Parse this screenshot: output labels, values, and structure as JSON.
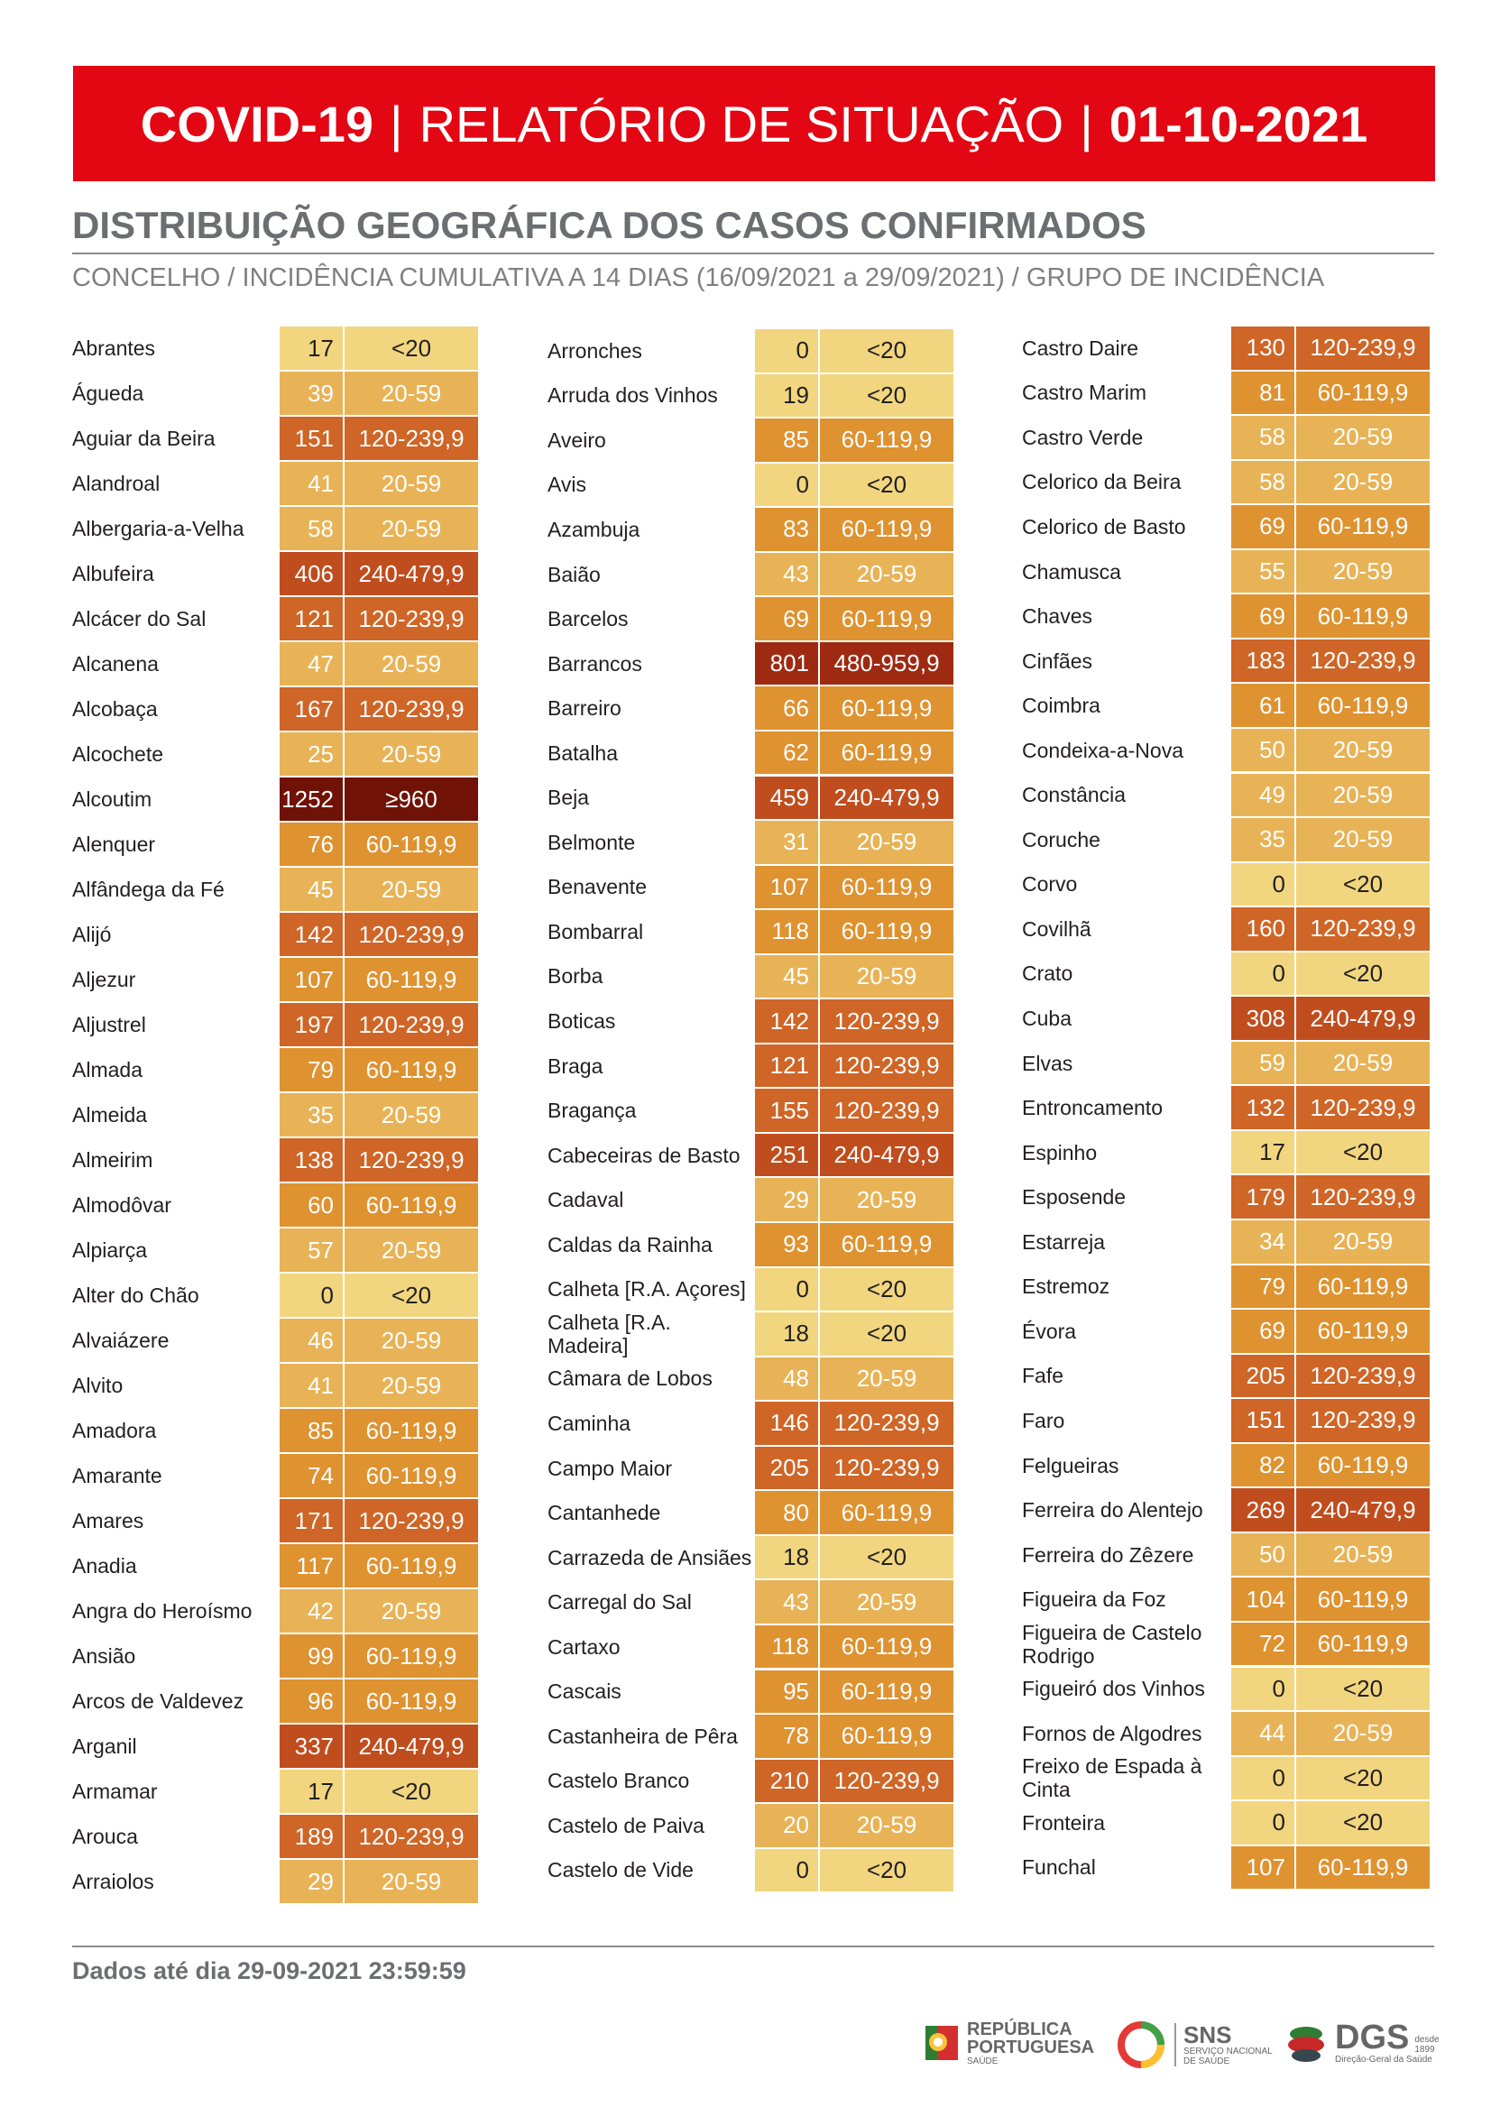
{
  "header": {
    "prefix": "COVID-19",
    "separator": "|",
    "title": "RELATÓRIO DE SITUAÇÃO",
    "date": "01-10-2021"
  },
  "section_title": "DISTRIBUIÇÃO GEOGRÁFICA DOS CASOS CONFIRMADOS",
  "subtitle": "CONCELHO / INCIDÊNCIA CUMULATIVA A 14 DIAS (16/09/2021 a 29/09/2021) / GRUPO DE INCIDÊNCIA",
  "group_colors": {
    "<20": "#f1d67f",
    "20-59": "#e8b356",
    "60-119,9": "#de9230",
    "120-239,9": "#cf6526",
    "240-479,9": "#c04d1e",
    "480-959,9": "#9e2a12",
    "≥960": "#701206"
  },
  "columns": [
    [
      {
        "name": "Abrantes",
        "value": "17",
        "group": "<20"
      },
      {
        "name": "Águeda",
        "value": "39",
        "group": "20-59"
      },
      {
        "name": "Aguiar da Beira",
        "value": "151",
        "group": "120-239,9"
      },
      {
        "name": "Alandroal",
        "value": "41",
        "group": "20-59"
      },
      {
        "name": "Albergaria-a-Velha",
        "value": "58",
        "group": "20-59"
      },
      {
        "name": "Albufeira",
        "value": "406",
        "group": "240-479,9"
      },
      {
        "name": "Alcácer do Sal",
        "value": "121",
        "group": "120-239,9"
      },
      {
        "name": "Alcanena",
        "value": "47",
        "group": "20-59"
      },
      {
        "name": "Alcobaça",
        "value": "167",
        "group": "120-239,9"
      },
      {
        "name": "Alcochete",
        "value": "25",
        "group": "20-59"
      },
      {
        "name": "Alcoutim",
        "value": "1252",
        "group": "≥960"
      },
      {
        "name": "Alenquer",
        "value": "76",
        "group": "60-119,9"
      },
      {
        "name": "Alfândega da Fé",
        "value": "45",
        "group": "20-59"
      },
      {
        "name": "Alijó",
        "value": "142",
        "group": "120-239,9"
      },
      {
        "name": "Aljezur",
        "value": "107",
        "group": "60-119,9"
      },
      {
        "name": "Aljustrel",
        "value": "197",
        "group": "120-239,9"
      },
      {
        "name": "Almada",
        "value": "79",
        "group": "60-119,9"
      },
      {
        "name": "Almeida",
        "value": "35",
        "group": "20-59"
      },
      {
        "name": "Almeirim",
        "value": "138",
        "group": "120-239,9"
      },
      {
        "name": "Almodôvar",
        "value": "60",
        "group": "60-119,9"
      },
      {
        "name": "Alpiarça",
        "value": "57",
        "group": "20-59"
      },
      {
        "name": "Alter do Chão",
        "value": "0",
        "group": "<20"
      },
      {
        "name": "Alvaiázere",
        "value": "46",
        "group": "20-59"
      },
      {
        "name": "Alvito",
        "value": "41",
        "group": "20-59"
      },
      {
        "name": "Amadora",
        "value": "85",
        "group": "60-119,9"
      },
      {
        "name": "Amarante",
        "value": "74",
        "group": "60-119,9"
      },
      {
        "name": "Amares",
        "value": "171",
        "group": "120-239,9"
      },
      {
        "name": "Anadia",
        "value": "117",
        "group": "60-119,9"
      },
      {
        "name": "Angra do Heroísmo",
        "value": "42",
        "group": "20-59"
      },
      {
        "name": "Ansião",
        "value": "99",
        "group": "60-119,9"
      },
      {
        "name": "Arcos de Valdevez",
        "value": "96",
        "group": "60-119,9"
      },
      {
        "name": "Arganil",
        "value": "337",
        "group": "240-479,9"
      },
      {
        "name": "Armamar",
        "value": "17",
        "group": "<20"
      },
      {
        "name": "Arouca",
        "value": "189",
        "group": "120-239,9"
      },
      {
        "name": "Arraiolos",
        "value": "29",
        "group": "20-59"
      }
    ],
    [
      {
        "name": "Arronches",
        "value": "0",
        "group": "<20"
      },
      {
        "name": "Arruda dos Vinhos",
        "value": "19",
        "group": "<20"
      },
      {
        "name": "Aveiro",
        "value": "85",
        "group": "60-119,9"
      },
      {
        "name": "Avis",
        "value": "0",
        "group": "<20"
      },
      {
        "name": "Azambuja",
        "value": "83",
        "group": "60-119,9"
      },
      {
        "name": "Baião",
        "value": "43",
        "group": "20-59"
      },
      {
        "name": "Barcelos",
        "value": "69",
        "group": "60-119,9"
      },
      {
        "name": "Barrancos",
        "value": "801",
        "group": "480-959,9"
      },
      {
        "name": "Barreiro",
        "value": "66",
        "group": "60-119,9"
      },
      {
        "name": "Batalha",
        "value": "62",
        "group": "60-119,9"
      },
      {
        "name": "Beja",
        "value": "459",
        "group": "240-479,9"
      },
      {
        "name": "Belmonte",
        "value": "31",
        "group": "20-59"
      },
      {
        "name": "Benavente",
        "value": "107",
        "group": "60-119,9"
      },
      {
        "name": "Bombarral",
        "value": "118",
        "group": "60-119,9"
      },
      {
        "name": "Borba",
        "value": "45",
        "group": "20-59"
      },
      {
        "name": "Boticas",
        "value": "142",
        "group": "120-239,9"
      },
      {
        "name": "Braga",
        "value": "121",
        "group": "120-239,9"
      },
      {
        "name": "Bragança",
        "value": "155",
        "group": "120-239,9"
      },
      {
        "name": "Cabeceiras de Basto",
        "value": "251",
        "group": "240-479,9"
      },
      {
        "name": "Cadaval",
        "value": "29",
        "group": "20-59"
      },
      {
        "name": "Caldas da Rainha",
        "value": "93",
        "group": "60-119,9"
      },
      {
        "name": "Calheta [R.A. Açores]",
        "value": "0",
        "group": "<20"
      },
      {
        "name": "Calheta [R.A. Madeira]",
        "value": "18",
        "group": "<20",
        "wrap": true
      },
      {
        "name": "Câmara de Lobos",
        "value": "48",
        "group": "20-59"
      },
      {
        "name": "Caminha",
        "value": "146",
        "group": "120-239,9"
      },
      {
        "name": "Campo Maior",
        "value": "205",
        "group": "120-239,9"
      },
      {
        "name": "Cantanhede",
        "value": "80",
        "group": "60-119,9"
      },
      {
        "name": "Carrazeda de Ansiães",
        "value": "18",
        "group": "<20"
      },
      {
        "name": "Carregal do Sal",
        "value": "43",
        "group": "20-59"
      },
      {
        "name": "Cartaxo",
        "value": "118",
        "group": "60-119,9"
      },
      {
        "name": "Cascais",
        "value": "95",
        "group": "60-119,9"
      },
      {
        "name": "Castanheira de Pêra",
        "value": "78",
        "group": "60-119,9"
      },
      {
        "name": "Castelo Branco",
        "value": "210",
        "group": "120-239,9"
      },
      {
        "name": "Castelo de Paiva",
        "value": "20",
        "group": "20-59"
      },
      {
        "name": "Castelo de Vide",
        "value": "0",
        "group": "<20"
      }
    ],
    [
      {
        "name": "Castro Daire",
        "value": "130",
        "group": "120-239,9"
      },
      {
        "name": "Castro Marim",
        "value": "81",
        "group": "60-119,9"
      },
      {
        "name": "Castro Verde",
        "value": "58",
        "group": "20-59"
      },
      {
        "name": "Celorico da Beira",
        "value": "58",
        "group": "20-59"
      },
      {
        "name": "Celorico de Basto",
        "value": "69",
        "group": "60-119,9"
      },
      {
        "name": "Chamusca",
        "value": "55",
        "group": "20-59"
      },
      {
        "name": "Chaves",
        "value": "69",
        "group": "60-119,9"
      },
      {
        "name": "Cinfães",
        "value": "183",
        "group": "120-239,9"
      },
      {
        "name": "Coimbra",
        "value": "61",
        "group": "60-119,9"
      },
      {
        "name": "Condeixa-a-Nova",
        "value": "50",
        "group": "20-59"
      },
      {
        "name": "Constância",
        "value": "49",
        "group": "20-59"
      },
      {
        "name": "Coruche",
        "value": "35",
        "group": "20-59"
      },
      {
        "name": "Corvo",
        "value": "0",
        "group": "<20"
      },
      {
        "name": "Covilhã",
        "value": "160",
        "group": "120-239,9"
      },
      {
        "name": "Crato",
        "value": "0",
        "group": "<20"
      },
      {
        "name": "Cuba",
        "value": "308",
        "group": "240-479,9"
      },
      {
        "name": "Elvas",
        "value": "59",
        "group": "20-59"
      },
      {
        "name": "Entroncamento",
        "value": "132",
        "group": "120-239,9"
      },
      {
        "name": "Espinho",
        "value": "17",
        "group": "<20"
      },
      {
        "name": "Esposende",
        "value": "179",
        "group": "120-239,9"
      },
      {
        "name": "Estarreja",
        "value": "34",
        "group": "20-59"
      },
      {
        "name": "Estremoz",
        "value": "79",
        "group": "60-119,9"
      },
      {
        "name": "Évora",
        "value": "69",
        "group": "60-119,9"
      },
      {
        "name": "Fafe",
        "value": "205",
        "group": "120-239,9"
      },
      {
        "name": "Faro",
        "value": "151",
        "group": "120-239,9"
      },
      {
        "name": "Felgueiras",
        "value": "82",
        "group": "60-119,9"
      },
      {
        "name": "Ferreira do Alentejo",
        "value": "269",
        "group": "240-479,9"
      },
      {
        "name": "Ferreira do Zêzere",
        "value": "50",
        "group": "20-59"
      },
      {
        "name": "Figueira da Foz",
        "value": "104",
        "group": "60-119,9"
      },
      {
        "name": "Figueira de Castelo Rodrigo",
        "value": "72",
        "group": "60-119,9",
        "wrap": true
      },
      {
        "name": "Figueiró dos Vinhos",
        "value": "0",
        "group": "<20"
      },
      {
        "name": "Fornos de Algodres",
        "value": "44",
        "group": "20-59"
      },
      {
        "name": "Freixo de Espada à Cinta",
        "value": "0",
        "group": "<20",
        "wrap": true
      },
      {
        "name": "Fronteira",
        "value": "0",
        "group": "<20"
      },
      {
        "name": "Funchal",
        "value": "107",
        "group": "60-119,9"
      }
    ]
  ],
  "footer_note": "Dados até dia 29-09-2021 23:59:59",
  "logos": {
    "republica_line1": "REPÚBLICA",
    "republica_line2": "PORTUGUESA",
    "republica_sub": "SAÚDE",
    "sns_title": "SNS",
    "sns_line1": "SERVIÇO NACIONAL",
    "sns_line2": "DE SAÚDE",
    "dgs_title": "DGS",
    "dgs_since_1": "desde",
    "dgs_since_2": "1899",
    "dgs_sub": "Direção-Geral da Saúde"
  }
}
